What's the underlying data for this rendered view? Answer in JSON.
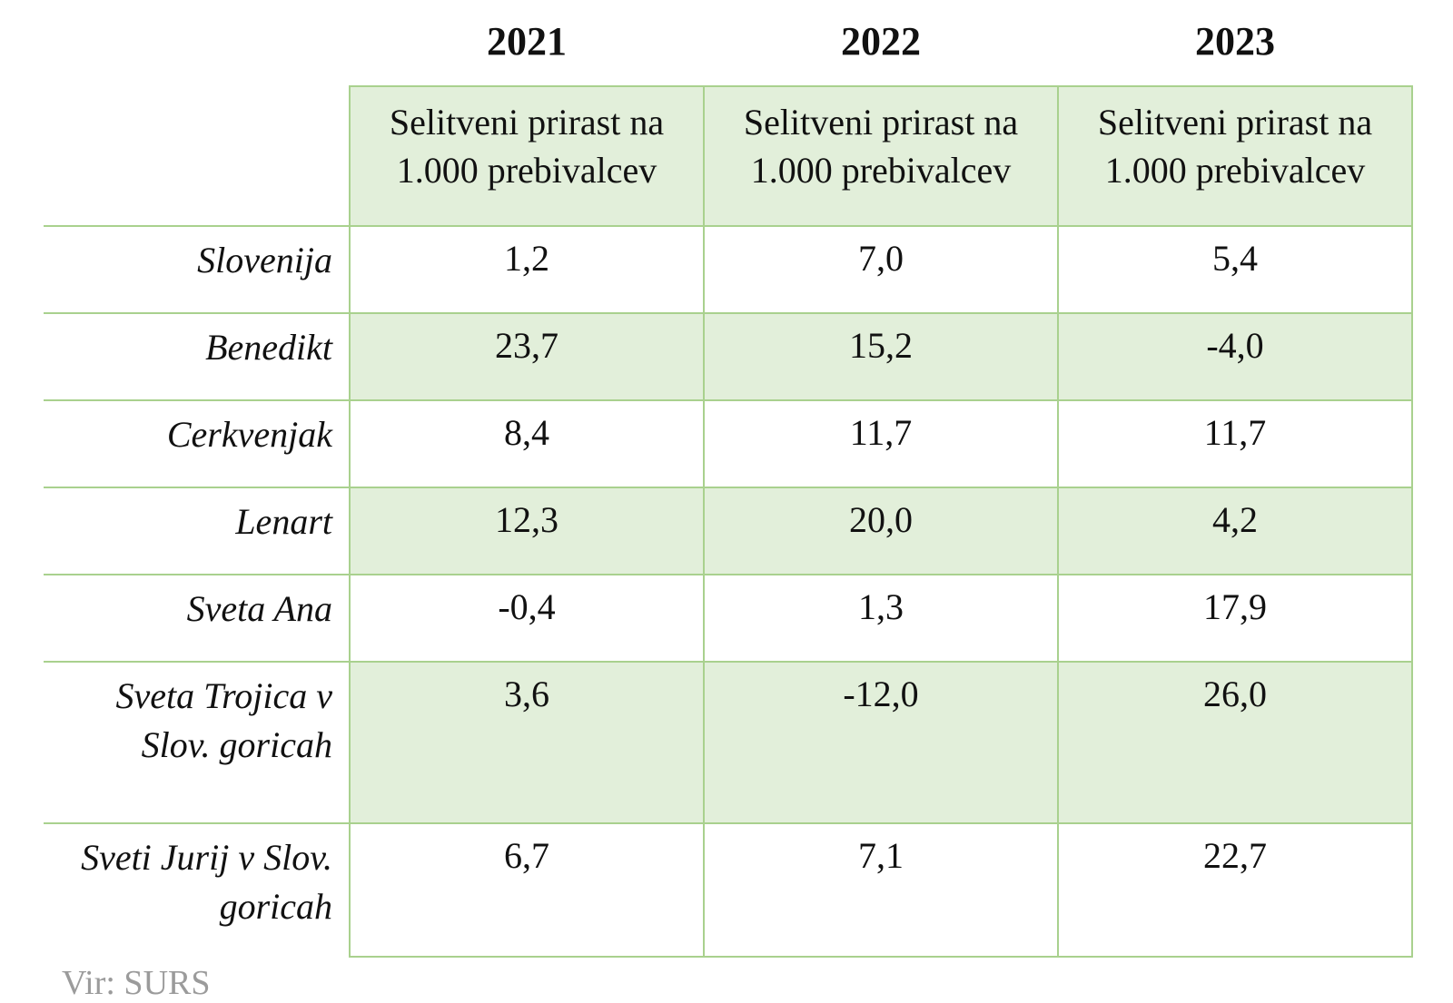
{
  "colors": {
    "row_fill_green": "#e2efda",
    "grid_border_green": "#a9d18e",
    "text_black": "#111111",
    "source_gray": "#9b9b9b"
  },
  "table": {
    "years": [
      "2021",
      "2022",
      "2023"
    ],
    "subheader": "Selitveni prirast na 1.000 prebivalcev",
    "rows": [
      {
        "label": "Slovenija",
        "values": [
          "1,2",
          "7,0",
          "5,4"
        ]
      },
      {
        "label": "Benedikt",
        "values": [
          "23,7",
          "15,2",
          "-4,0"
        ]
      },
      {
        "label": "Cerkvenjak",
        "values": [
          "8,4",
          "11,7",
          "11,7"
        ]
      },
      {
        "label": "Lenart",
        "values": [
          "12,3",
          "20,0",
          "4,2"
        ]
      },
      {
        "label": "Sveta Ana",
        "values": [
          "-0,4",
          "1,3",
          "17,9"
        ]
      },
      {
        "label": "Sveta Trojica v Slov. goricah",
        "values": [
          "3,6",
          "-12,0",
          "26,0"
        ]
      },
      {
        "label": "Sveti Jurij v Slov. goricah",
        "values": [
          "6,7",
          "7,1",
          "22,7"
        ]
      }
    ],
    "footer": "Vir: SURS"
  },
  "chart_data": {
    "type": "table",
    "title": "",
    "columns": [
      "2021",
      "2022",
      "2023"
    ],
    "column_subheader": "Selitveni prirast na 1.000 prebivalcev",
    "row_labels": [
      "Slovenija",
      "Benedikt",
      "Cerkvenjak",
      "Lenart",
      "Sveta Ana",
      "Sveta Trojica v Slov. goricah",
      "Sveti Jurij v Slov. goricah"
    ],
    "values": [
      [
        1.2,
        7.0,
        5.4
      ],
      [
        23.7,
        15.2,
        -4.0
      ],
      [
        8.4,
        11.7,
        11.7
      ],
      [
        12.3,
        20.0,
        4.2
      ],
      [
        -0.4,
        1.3,
        17.9
      ],
      [
        3.6,
        -12.0,
        26.0
      ],
      [
        6.7,
        7.1,
        22.7
      ]
    ],
    "decimal_separator": ",",
    "source": "Vir: SURS"
  }
}
